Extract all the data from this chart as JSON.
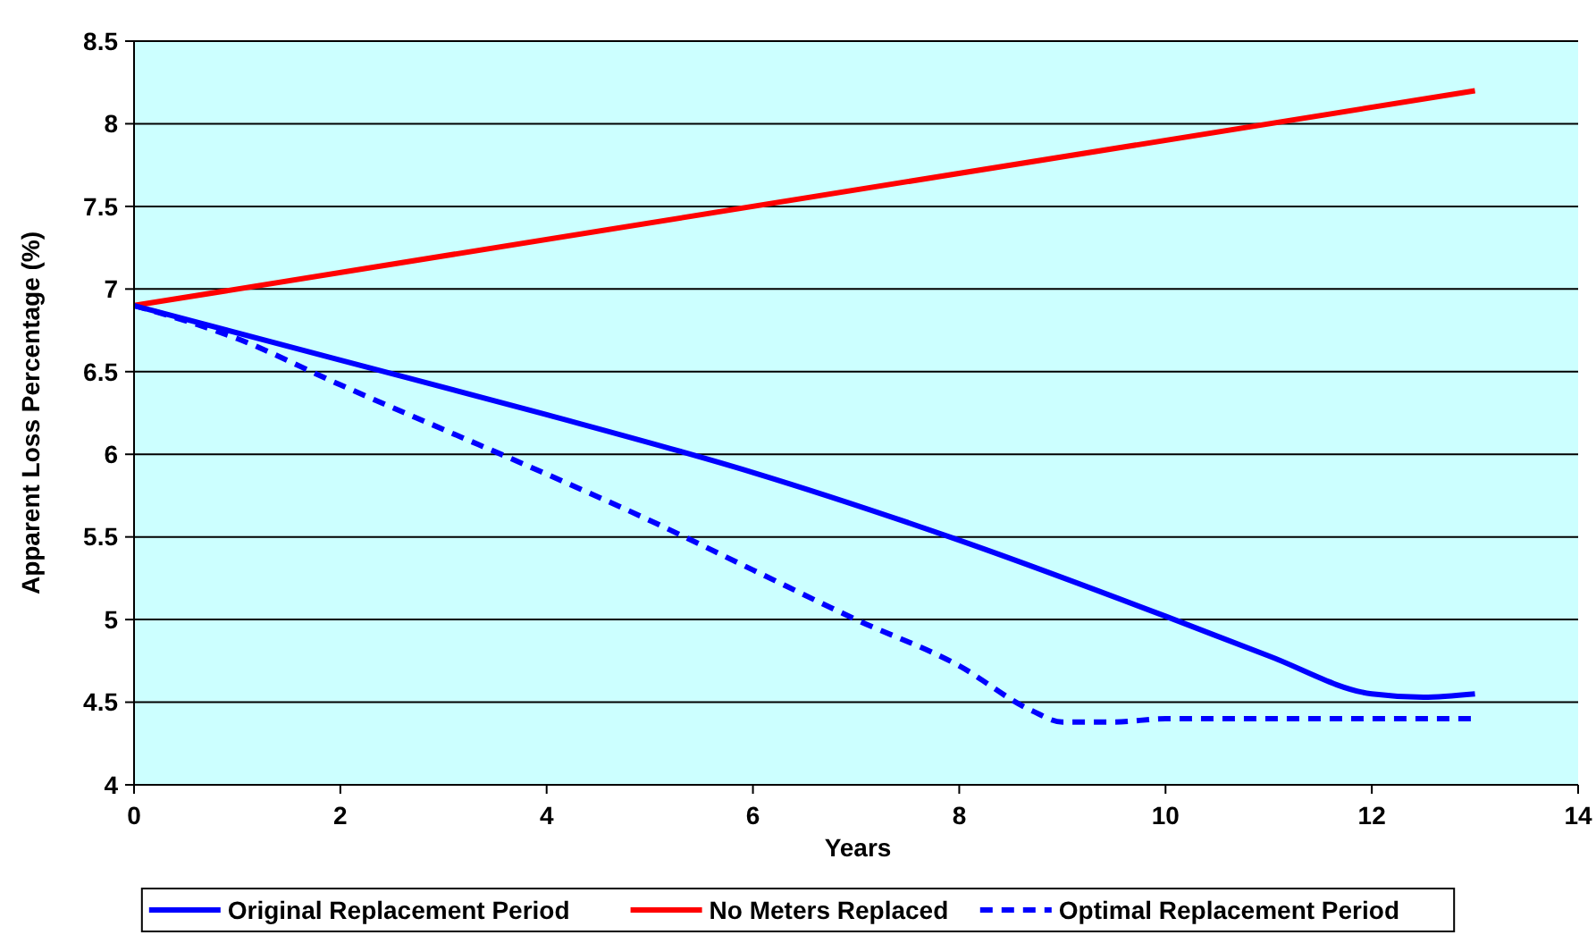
{
  "chart_data": {
    "type": "line",
    "xlabel": "Years",
    "ylabel": "Apparent Loss Percentage (%)",
    "xlim": [
      0,
      14
    ],
    "xticks": [
      0,
      2,
      4,
      6,
      8,
      10,
      12,
      14
    ],
    "ylim": [
      4,
      8.5
    ],
    "yticks": [
      4,
      4.5,
      5,
      5.5,
      6,
      6.5,
      7,
      7.5,
      8,
      8.5
    ],
    "grid": "y",
    "legend": "bottom",
    "marker": "none",
    "series": [
      {
        "name": "Original Replacement Period",
        "color": "#0000ff",
        "line_style": "solid",
        "x": [
          0,
          2,
          4,
          6,
          8,
          10,
          11,
          12,
          12.5,
          13
        ],
        "values": [
          6.9,
          6.57,
          6.24,
          5.89,
          5.48,
          5.02,
          4.78,
          4.55,
          4.53,
          4.55
        ]
      },
      {
        "name": "No Meters Replaced",
        "color": "#ff0000",
        "line_style": "solid",
        "x": [
          0,
          13
        ],
        "values": [
          6.9,
          8.2
        ]
      },
      {
        "name": "Optimal Replacement Period",
        "color": "#0000ff",
        "line_style": "dashed",
        "x": [
          0,
          1,
          2,
          3,
          4,
          5,
          6,
          7,
          8,
          8.7,
          9,
          9.5,
          10,
          13
        ],
        "values": [
          6.9,
          6.7,
          6.42,
          6.15,
          5.88,
          5.6,
          5.3,
          5.0,
          4.72,
          4.45,
          4.38,
          4.38,
          4.4,
          4.4
        ]
      }
    ]
  }
}
